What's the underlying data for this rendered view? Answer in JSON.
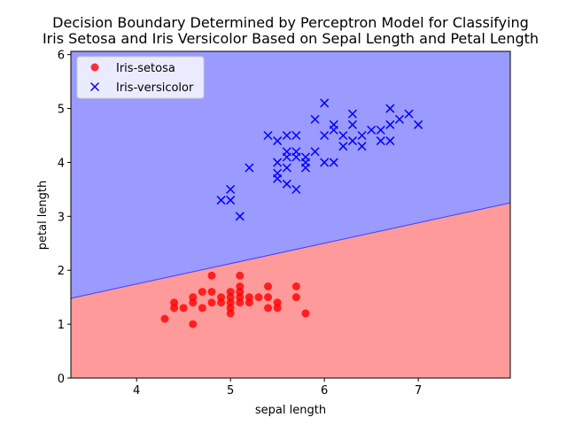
{
  "chart_data": {
    "type": "scatter",
    "title_lines": [
      "Decision Boundary Determined by Perceptron Model for Classifying",
      "Iris Setosa and Iris Versicolor Based on Sepal Length and Petal Length"
    ],
    "xlabel": "sepal length",
    "ylabel": "petal length",
    "xlim": [
      3.3,
      7.98
    ],
    "ylim": [
      0,
      6.06
    ],
    "xticks": [
      4,
      5,
      6,
      7
    ],
    "yticks": [
      0,
      1,
      2,
      3,
      4,
      5,
      6
    ],
    "grid": false,
    "legend_position": "top-left",
    "regions": {
      "boundary": {
        "x": [
          3.3,
          7.98
        ],
        "y": [
          1.48,
          3.25
        ]
      },
      "below": {
        "color": "#ff9a9a",
        "label": "Iris-setosa"
      },
      "above": {
        "color": "#9a9aff",
        "label": "Iris-versicolor"
      },
      "line_color": "#3f3fff"
    },
    "series": [
      {
        "name": "Iris-setosa",
        "marker": "circle",
        "color": "#ff0000",
        "points": [
          [
            4.3,
            1.1
          ],
          [
            4.4,
            1.3
          ],
          [
            4.4,
            1.4
          ],
          [
            4.5,
            1.3
          ],
          [
            4.6,
            1.0
          ],
          [
            4.6,
            1.4
          ],
          [
            4.6,
            1.5
          ],
          [
            4.7,
            1.3
          ],
          [
            4.7,
            1.6
          ],
          [
            4.8,
            1.4
          ],
          [
            4.8,
            1.6
          ],
          [
            4.8,
            1.9
          ],
          [
            4.9,
            1.4
          ],
          [
            4.9,
            1.5
          ],
          [
            5.0,
            1.2
          ],
          [
            5.0,
            1.3
          ],
          [
            5.0,
            1.4
          ],
          [
            5.0,
            1.5
          ],
          [
            5.0,
            1.6
          ],
          [
            5.1,
            1.4
          ],
          [
            5.1,
            1.5
          ],
          [
            5.1,
            1.6
          ],
          [
            5.1,
            1.7
          ],
          [
            5.1,
            1.9
          ],
          [
            5.2,
            1.4
          ],
          [
            5.2,
            1.5
          ],
          [
            5.3,
            1.5
          ],
          [
            5.4,
            1.3
          ],
          [
            5.4,
            1.5
          ],
          [
            5.4,
            1.7
          ],
          [
            5.5,
            1.3
          ],
          [
            5.5,
            1.4
          ],
          [
            5.7,
            1.5
          ],
          [
            5.7,
            1.7
          ],
          [
            5.8,
            1.2
          ]
        ]
      },
      {
        "name": "Iris-versicolor",
        "marker": "x",
        "color": "#0000ff",
        "points": [
          [
            4.9,
            3.3
          ],
          [
            5.0,
            3.3
          ],
          [
            5.0,
            3.5
          ],
          [
            5.1,
            3.0
          ],
          [
            5.2,
            3.9
          ],
          [
            5.4,
            4.5
          ],
          [
            5.5,
            3.7
          ],
          [
            5.5,
            3.8
          ],
          [
            5.5,
            4.0
          ],
          [
            5.5,
            4.4
          ],
          [
            5.6,
            3.6
          ],
          [
            5.6,
            3.9
          ],
          [
            5.6,
            4.1
          ],
          [
            5.6,
            4.2
          ],
          [
            5.6,
            4.5
          ],
          [
            5.7,
            3.5
          ],
          [
            5.7,
            4.1
          ],
          [
            5.7,
            4.2
          ],
          [
            5.7,
            4.5
          ],
          [
            5.8,
            3.9
          ],
          [
            5.8,
            4.0
          ],
          [
            5.8,
            4.1
          ],
          [
            5.9,
            4.2
          ],
          [
            5.9,
            4.8
          ],
          [
            6.0,
            4.0
          ],
          [
            6.0,
            4.5
          ],
          [
            6.0,
            5.1
          ],
          [
            6.1,
            4.0
          ],
          [
            6.1,
            4.6
          ],
          [
            6.1,
            4.7
          ],
          [
            6.2,
            4.3
          ],
          [
            6.2,
            4.5
          ],
          [
            6.3,
            4.4
          ],
          [
            6.3,
            4.7
          ],
          [
            6.3,
            4.9
          ],
          [
            6.4,
            4.3
          ],
          [
            6.4,
            4.5
          ],
          [
            6.5,
            4.6
          ],
          [
            6.6,
            4.4
          ],
          [
            6.6,
            4.6
          ],
          [
            6.7,
            4.4
          ],
          [
            6.7,
            4.7
          ],
          [
            6.7,
            5.0
          ],
          [
            6.8,
            4.8
          ],
          [
            6.9,
            4.9
          ],
          [
            7.0,
            4.7
          ]
        ]
      }
    ]
  }
}
